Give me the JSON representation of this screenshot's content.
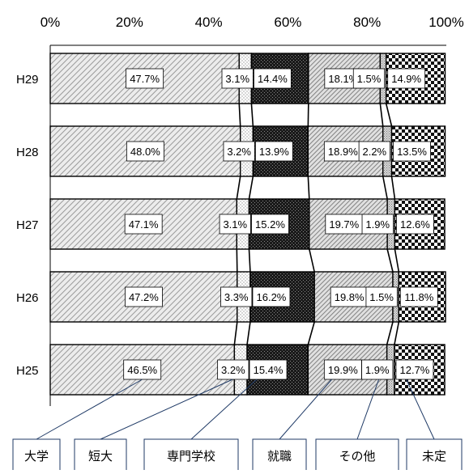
{
  "chart_data": {
    "type": "bar",
    "orientation": "horizontal",
    "stacked": "percent",
    "categories": [
      "H29",
      "H28",
      "H27",
      "H26",
      "H25"
    ],
    "xlim": [
      0,
      100
    ],
    "x_ticks": [
      "0%",
      "20%",
      "40%",
      "60%",
      "80%",
      "100%"
    ],
    "series": [
      {
        "name": "大学",
        "values": [
          47.7,
          48.0,
          47.1,
          47.2,
          46.5
        ],
        "pattern": "diagonal-fine"
      },
      {
        "name": "短大",
        "values": [
          3.1,
          3.2,
          3.1,
          3.3,
          3.2
        ],
        "pattern": "dots-light"
      },
      {
        "name": "専門学校",
        "values": [
          14.4,
          13.9,
          15.2,
          16.2,
          15.4
        ],
        "pattern": "dark-dense"
      },
      {
        "name": "就職",
        "values": [
          18.1,
          18.9,
          19.7,
          19.8,
          19.9
        ],
        "pattern": "diagonal-dense"
      },
      {
        "name": "その他",
        "values": [
          1.5,
          2.2,
          1.9,
          1.5,
          1.9
        ],
        "pattern": "dots-grey"
      },
      {
        "name": "未定",
        "values": [
          14.9,
          13.5,
          12.6,
          11.8,
          12.7
        ],
        "pattern": "checker"
      }
    ],
    "data_labels": [
      [
        "47.7%",
        "3.1%",
        "14.4%",
        "18.1%",
        "1.5%",
        "14.9%"
      ],
      [
        "48.0%",
        "3.2%",
        "13.9%",
        "18.9%",
        "2.2%",
        "13.5%"
      ],
      [
        "47.1%",
        "3.1%",
        "15.2%",
        "19.7%",
        "1.9%",
        "12.6%"
      ],
      [
        "47.2%",
        "3.3%",
        "16.2%",
        "19.8%",
        "1.5%",
        "11.8%"
      ],
      [
        "46.5%",
        "3.2%",
        "15.4%",
        "19.9%",
        "1.9%",
        "12.7%"
      ]
    ],
    "legend_placement": "bottom",
    "legend_labels": [
      "大学",
      "短大",
      "専門学校",
      "就職",
      "その他",
      "未定"
    ],
    "colors": {
      "border": "#000000",
      "callout_line": "#1f3a66",
      "label_bg": "#ffffff"
    }
  }
}
